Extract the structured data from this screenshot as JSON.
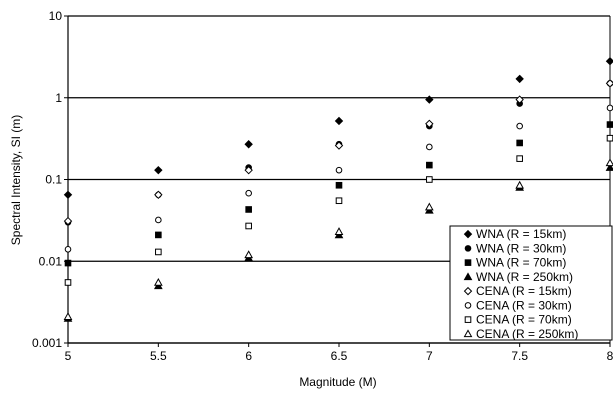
{
  "chart_data": {
    "type": "scatter",
    "title": "",
    "xlabel": "Magnitude (M)",
    "ylabel": "Spectral Intensity, SI (m)",
    "x_ticks": [
      "5",
      "5.5",
      "6",
      "6.5",
      "7",
      "7.5",
      "8"
    ],
    "y_ticks": [
      "0.001",
      "0.01",
      "0.1",
      "1",
      "10"
    ],
    "xlim": [
      5,
      8
    ],
    "ylim": [
      0.001,
      10
    ],
    "y_scale": "log",
    "grid": "horizontal major lines",
    "legend_position": "bottom-right",
    "x": [
      5,
      5.5,
      6,
      6.5,
      7,
      7.5,
      8
    ],
    "series": [
      {
        "name": "WNA (R = 15km)",
        "marker": "diamond",
        "fill": "filled",
        "values": [
          0.065,
          0.13,
          0.27,
          0.52,
          0.95,
          1.7,
          2.8
        ]
      },
      {
        "name": "WNA (R = 30km)",
        "marker": "circle",
        "fill": "filled",
        "values": [
          0.03,
          0.065,
          0.14,
          0.27,
          0.45,
          0.85,
          1.5
        ]
      },
      {
        "name": "WNA (R = 70km)",
        "marker": "square",
        "fill": "filled",
        "values": [
          0.0095,
          0.021,
          0.043,
          0.085,
          0.15,
          0.28,
          0.47
        ]
      },
      {
        "name": "WNA (R = 250km)",
        "marker": "triangle",
        "fill": "filled",
        "values": [
          0.002,
          0.005,
          0.011,
          0.021,
          0.042,
          0.08,
          0.14
        ]
      },
      {
        "name": "CENA (R = 15km)",
        "marker": "diamond",
        "fill": "open",
        "values": [
          0.031,
          0.065,
          0.13,
          0.26,
          0.48,
          0.95,
          1.5
        ]
      },
      {
        "name": "CENA (R = 30km)",
        "marker": "circle",
        "fill": "open",
        "values": [
          0.014,
          0.032,
          0.068,
          0.13,
          0.25,
          0.45,
          0.75
        ]
      },
      {
        "name": "CENA (R = 70km)",
        "marker": "square",
        "fill": "open",
        "values": [
          0.0055,
          0.013,
          0.027,
          0.055,
          0.1,
          0.18,
          0.32
        ]
      },
      {
        "name": "CENA (R = 250km)",
        "marker": "triangle",
        "fill": "open",
        "values": [
          0.0021,
          0.0055,
          0.012,
          0.023,
          0.046,
          0.085,
          0.16
        ]
      }
    ]
  }
}
